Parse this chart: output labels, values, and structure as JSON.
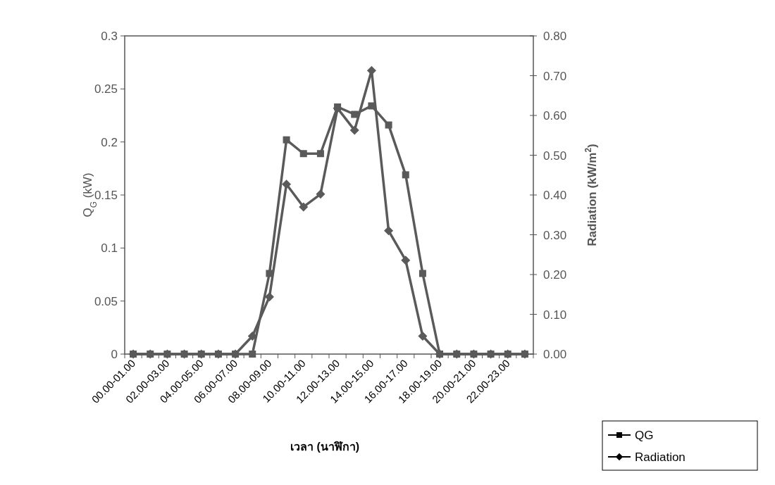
{
  "chart_data": {
    "type": "line",
    "xlabel": "เวลา (นาฬิกา)",
    "ylabel": "Q$_{G}$ (kW)",
    "y2label": "Radiation (kW/m$^{2}$)",
    "categories": [
      "00.00-01.00",
      null,
      "02.00-03.00",
      null,
      "04.00-05.00",
      null,
      "06.00-07.00",
      null,
      "08.00-09.00",
      null,
      "10.00-11.00",
      null,
      "12.00-13.00",
      null,
      "14.00-15.00",
      null,
      "16.00-17.00",
      null,
      "18.00-19.00",
      null,
      "20.00-21.00",
      null,
      "22.00-23.00",
      null
    ],
    "series": [
      {
        "name": "QG",
        "color": "#5a5a5a",
        "marker": "square",
        "values": [
          0,
          0,
          0,
          0,
          0,
          0,
          0,
          0,
          0.076,
          0.202,
          0.189,
          0.189,
          0.233,
          0.226,
          0.234,
          0.216,
          0.169,
          0.076,
          0,
          0,
          0,
          0,
          0,
          0
        ]
      },
      {
        "name": "Radiation",
        "color": "#5a5a5a",
        "marker": "diamond",
        "axis": "y2",
        "values": [
          0,
          0,
          0,
          0,
          0,
          0,
          0,
          0.045,
          0.144,
          0.427,
          0.37,
          0.402,
          0.618,
          0.563,
          0.713,
          0.31,
          0.236,
          0.045,
          0,
          0,
          0,
          0,
          0,
          0
        ]
      }
    ],
    "ylim": [
      0,
      0.3
    ],
    "yticks": [
      0,
      0.05,
      0.1,
      0.15,
      0.2,
      0.25,
      0.3
    ],
    "y2lim": [
      0,
      0.8
    ],
    "y2ticks": [
      {
        "value": 0,
        "label": "0.00"
      },
      {
        "value": 0.1,
        "label": "0.10"
      },
      {
        "value": 0.2,
        "label": "0.20"
      },
      {
        "value": 0.3,
        "label": "0.30"
      },
      {
        "value": 0.4,
        "label": "0.40"
      },
      {
        "value": 0.5,
        "label": "0.50"
      },
      {
        "value": 0.6,
        "label": "0.60"
      },
      {
        "value": 0.7,
        "label": "0.70"
      },
      {
        "value": 0.8,
        "label": "0.80"
      }
    ],
    "grid": false,
    "legend": "bottom right",
    "line_style": "solid"
  }
}
